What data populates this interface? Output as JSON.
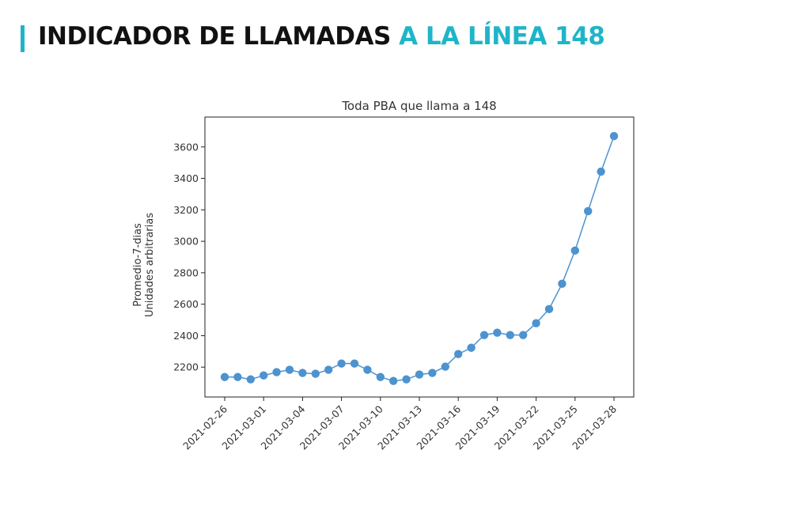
{
  "header": {
    "title_main": "INDICADOR DE LLAMADAS",
    "title_accent": "A LA LÍNEA 148",
    "accent_color": "#1fb5c8"
  },
  "chart_data": {
    "type": "line",
    "title": "Toda PBA que llama a 148",
    "xlabel": "",
    "ylabel_lines": [
      "Promedio-7-dias",
      "Unidades arbitrarias"
    ],
    "ylim": [
      2010,
      3790
    ],
    "yticks": [
      2200,
      2400,
      2600,
      2800,
      3000,
      3200,
      3400,
      3600
    ],
    "xticks": [
      "2021-02-26",
      "2021-03-01",
      "2021-03-04",
      "2021-03-07",
      "2021-03-10",
      "2021-03-13",
      "2021-03-16",
      "2021-03-19",
      "2021-03-22",
      "2021-03-25",
      "2021-03-28"
    ],
    "x": [
      "2021-02-26",
      "2021-02-27",
      "2021-02-28",
      "2021-03-01",
      "2021-03-02",
      "2021-03-03",
      "2021-03-04",
      "2021-03-05",
      "2021-03-06",
      "2021-03-07",
      "2021-03-08",
      "2021-03-09",
      "2021-03-10",
      "2021-03-11",
      "2021-03-12",
      "2021-03-13",
      "2021-03-14",
      "2021-03-15",
      "2021-03-16",
      "2021-03-17",
      "2021-03-18",
      "2021-03-19",
      "2021-03-20",
      "2021-03-21",
      "2021-03-22",
      "2021-03-23",
      "2021-03-24",
      "2021-03-25",
      "2021-03-26",
      "2021-03-27",
      "2021-03-28"
    ],
    "series": [
      {
        "name": "Toda PBA",
        "color": "#4c93cf",
        "values": [
          2137,
          2137,
          2122,
          2147,
          2168,
          2183,
          2163,
          2158,
          2183,
          2223,
          2223,
          2183,
          2137,
          2112,
          2122,
          2153,
          2163,
          2203,
          2283,
          2323,
          2404,
          2419,
          2404,
          2404,
          2479,
          2569,
          2730,
          2941,
          3192,
          3443,
          3669
        ]
      }
    ]
  }
}
